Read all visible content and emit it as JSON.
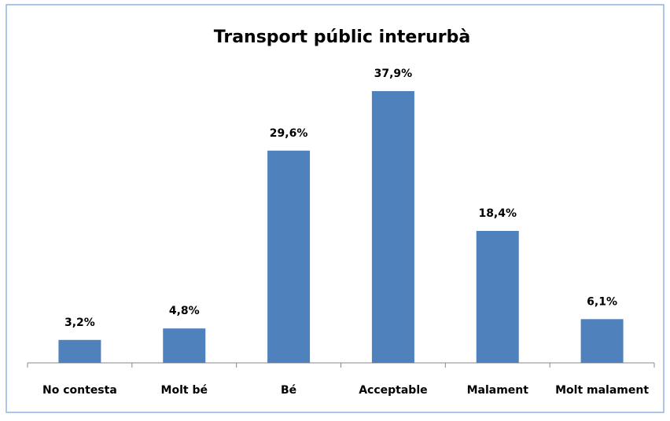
{
  "chart_data": {
    "type": "bar",
    "title": "Transport públic interurbà",
    "categories": [
      "No contesta",
      "Molt bé",
      "Bé",
      "Acceptable",
      "Malament",
      "Molt malament"
    ],
    "values": [
      3.2,
      4.8,
      29.6,
      37.9,
      18.4,
      6.1
    ],
    "value_labels": [
      "3,2%",
      "4,8%",
      "29,6%",
      "37,9%",
      "18,4%",
      "6,1%"
    ],
    "color": "#4f81bd"
  }
}
